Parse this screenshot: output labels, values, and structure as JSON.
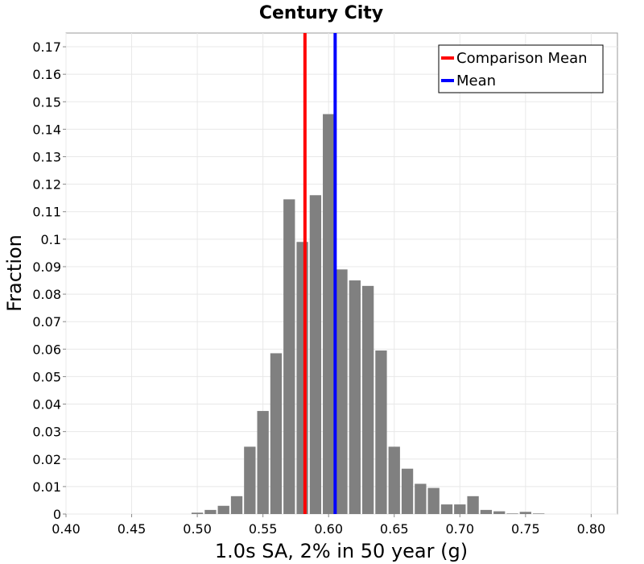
{
  "chart_data": {
    "type": "bar",
    "title": "Century City",
    "xlabel": "1.0s SA, 2% in 50 year (g)",
    "ylabel": "Fraction",
    "xlim": [
      0.4,
      0.82
    ],
    "ylim": [
      0,
      0.175
    ],
    "grid": true,
    "legend_position": "top-right",
    "x_ticks": [
      "0.40",
      "0.45",
      "0.50",
      "0.55",
      "0.60",
      "0.65",
      "0.70",
      "0.75",
      "0.80"
    ],
    "y_ticks": [
      "0",
      "0.01",
      "0.02",
      "0.03",
      "0.04",
      "0.05",
      "0.06",
      "0.07",
      "0.08",
      "0.09",
      "0.1",
      "0.11",
      "0.12",
      "0.13",
      "0.14",
      "0.15",
      "0.16",
      "0.17"
    ],
    "bin_width": 0.01,
    "bin_centers": [
      0.5,
      0.51,
      0.52,
      0.53,
      0.54,
      0.55,
      0.56,
      0.57,
      0.58,
      0.59,
      0.6,
      0.61,
      0.62,
      0.63,
      0.64,
      0.65,
      0.66,
      0.67,
      0.68,
      0.69,
      0.7,
      0.71,
      0.72,
      0.73,
      0.74,
      0.75,
      0.76
    ],
    "values": [
      0.0005,
      0.0015,
      0.003,
      0.0065,
      0.0245,
      0.0375,
      0.0585,
      0.1145,
      0.099,
      0.116,
      0.1455,
      0.089,
      0.085,
      0.083,
      0.0595,
      0.0245,
      0.0165,
      0.011,
      0.0095,
      0.0035,
      0.0035,
      0.0065,
      0.0015,
      0.001,
      0.0002,
      0.0008,
      0.0002
    ],
    "bar_color": "#808080",
    "vlines": [
      {
        "name": "Comparison Mean",
        "x": 0.582,
        "color": "#ff0000"
      },
      {
        "name": "Mean",
        "x": 0.605,
        "color": "#0000ff"
      }
    ]
  }
}
